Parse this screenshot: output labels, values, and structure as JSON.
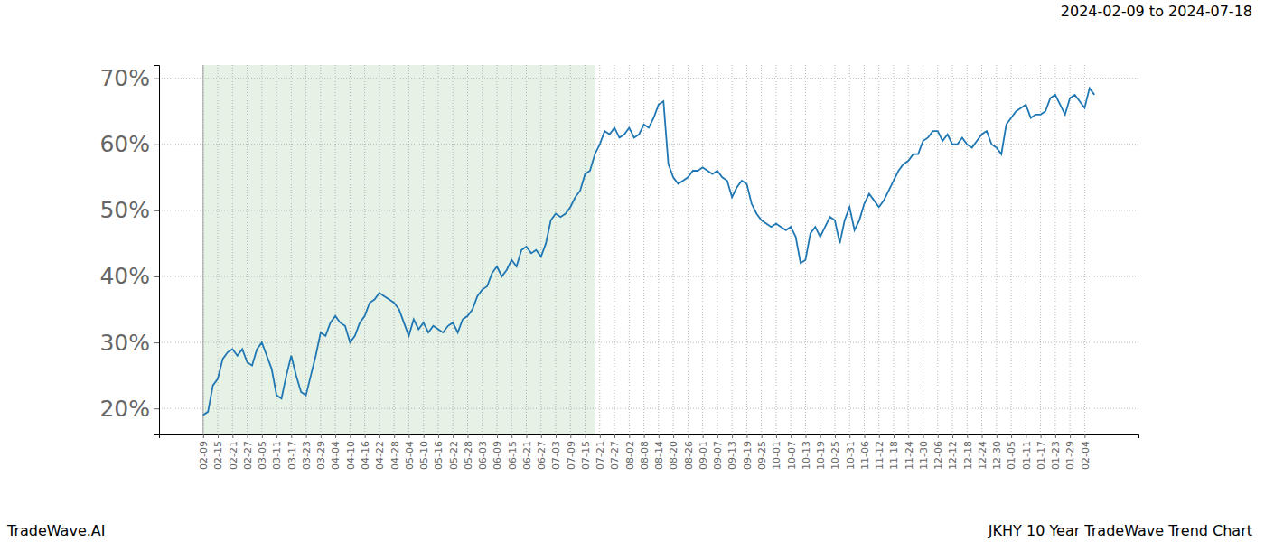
{
  "chart_data": {
    "type": "line",
    "title": "JKHY 10 Year TradeWave Trend Chart",
    "subtitle": "2024-02-09 to 2024-07-18",
    "annotations": [
      "TradeWave.AI"
    ],
    "categories": [
      "02-09",
      null,
      null,
      "02-15",
      null,
      null,
      "02-21",
      null,
      null,
      "02-27",
      null,
      null,
      "03-05",
      null,
      null,
      "03-11",
      null,
      null,
      "03-17",
      null,
      null,
      "03-23",
      null,
      null,
      "03-29",
      null,
      null,
      "04-04",
      null,
      null,
      "04-10",
      null,
      null,
      "04-16",
      null,
      null,
      "04-22",
      null,
      null,
      "04-28",
      null,
      null,
      "05-04",
      null,
      null,
      "05-10",
      null,
      null,
      "05-16",
      null,
      null,
      "05-22",
      null,
      null,
      "05-28",
      null,
      null,
      "06-03",
      null,
      null,
      "06-09",
      null,
      null,
      "06-15",
      null,
      null,
      "06-21",
      null,
      null,
      "06-27",
      null,
      null,
      "07-03",
      null,
      null,
      "07-09",
      null,
      null,
      "07-15",
      null,
      null,
      "07-21",
      null,
      null,
      "07-27",
      null,
      null,
      "08-02",
      null,
      null,
      "08-08",
      null,
      null,
      "08-14",
      null,
      null,
      "08-20",
      null,
      null,
      "08-26",
      null,
      null,
      "09-01",
      null,
      null,
      "09-07",
      null,
      null,
      "09-13",
      null,
      null,
      "09-19",
      null,
      null,
      "09-25",
      null,
      null,
      "10-01",
      null,
      null,
      "10-07",
      null,
      null,
      "10-13",
      null,
      null,
      "10-19",
      null,
      null,
      "10-25",
      null,
      null,
      "10-31",
      null,
      null,
      "11-06",
      null,
      null,
      "11-12",
      null,
      null,
      "11-18",
      null,
      null,
      "11-24",
      null,
      null,
      "11-30",
      null,
      null,
      "12-06",
      null,
      null,
      "12-12",
      null,
      null,
      "12-18",
      null,
      null,
      "12-24",
      null,
      null,
      "12-30",
      null,
      null,
      "01-05",
      null,
      null,
      "01-11",
      null,
      null,
      "01-17",
      null,
      null,
      "01-23",
      null,
      null,
      "01-29",
      null,
      null,
      "02-04",
      null,
      null
    ],
    "values": [
      19,
      19.5,
      23.5,
      24.5,
      27.5,
      28.5,
      29,
      28,
      29,
      27,
      26.5,
      29,
      30,
      28,
      26,
      22,
      21.5,
      25,
      28,
      25,
      22.5,
      22,
      25,
      28,
      31.5,
      31,
      33,
      34,
      33,
      32.5,
      30,
      31,
      33,
      34,
      36,
      36.5,
      37.5,
      37,
      36.5,
      36,
      35,
      33,
      31,
      33.5,
      32,
      33,
      31.5,
      32.5,
      32,
      31.5,
      32.5,
      33,
      31.5,
      33.5,
      34,
      35,
      37,
      38,
      38.5,
      40.5,
      41.5,
      40,
      41,
      42.5,
      41.5,
      44,
      44.5,
      43.5,
      44,
      43,
      45,
      48.5,
      49.5,
      49,
      49.5,
      50.5,
      52,
      53,
      55.5,
      56,
      58.5,
      60,
      62,
      61.5,
      62.5,
      61,
      61.5,
      62.5,
      61,
      61.5,
      63,
      62.5,
      64,
      66,
      66.5,
      57,
      55,
      54,
      54.5,
      55,
      56,
      56,
      56.5,
      56,
      55.5,
      56,
      55,
      54.5,
      52,
      53.5,
      54.5,
      54,
      51,
      49.5,
      48.5,
      48,
      47.5,
      48,
      47.5,
      47,
      47.5,
      46,
      42,
      42.5,
      46.5,
      47.5,
      46,
      47.5,
      49,
      48.5,
      45,
      48.5,
      50.5,
      47,
      48.5,
      51,
      52.5,
      51.5,
      50.5,
      51.5,
      53,
      54.5,
      56,
      57,
      57.5,
      58.5,
      58.5,
      60.5,
      61,
      62,
      62,
      60.5,
      61.5,
      60,
      60,
      61,
      60,
      59.5,
      60.5,
      61.5,
      62,
      60,
      59.5,
      58.5,
      63,
      64,
      65,
      65.5,
      66,
      64,
      64.5,
      64.5,
      65,
      67,
      67.5,
      66,
      64.5,
      67,
      67.5,
      66.5,
      65.5,
      68.5,
      67.5
    ],
    "color": "#1f77b4",
    "shaded_range": {
      "from": 0,
      "to": 80
    },
    "ylim": [
      16.2,
      72
    ],
    "yticks": [
      {
        "value": 20,
        "label": "20%"
      },
      {
        "value": 30,
        "label": "30%"
      },
      {
        "value": 40,
        "label": "40%"
      },
      {
        "value": 50,
        "label": "50%"
      },
      {
        "value": 60,
        "label": "60%"
      },
      {
        "value": 70,
        "label": "70%"
      }
    ],
    "grid": true
  }
}
